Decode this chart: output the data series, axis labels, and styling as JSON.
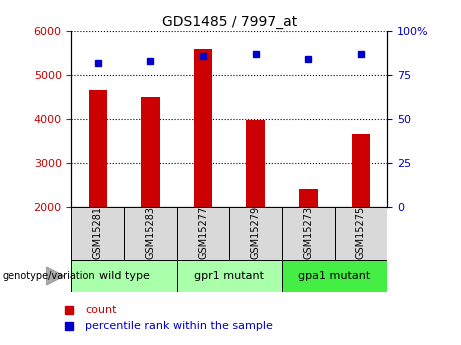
{
  "title": "GDS1485 / 7997_at",
  "samples": [
    "GSM15281",
    "GSM15283",
    "GSM15277",
    "GSM15279",
    "GSM15273",
    "GSM15275"
  ],
  "counts": [
    4650,
    4500,
    5600,
    3980,
    2420,
    3650
  ],
  "percentile_ranks": [
    82,
    83,
    86,
    87,
    84,
    87
  ],
  "ylim_left": [
    2000,
    6000
  ],
  "ylim_right": [
    0,
    100
  ],
  "yticks_left": [
    2000,
    3000,
    4000,
    5000,
    6000
  ],
  "yticks_right": [
    0,
    25,
    50,
    75,
    100
  ],
  "bar_color": "#cc0000",
  "dot_color": "#0000cc",
  "group_bg_color": "#d9d9d9",
  "groups": [
    {
      "label": "wild type",
      "indices": [
        0,
        1
      ],
      "color": "#aaffaa"
    },
    {
      "label": "gpr1 mutant",
      "indices": [
        2,
        3
      ],
      "color": "#aaffaa"
    },
    {
      "label": "gpa1 mutant",
      "indices": [
        4,
        5
      ],
      "color": "#44ee44"
    }
  ],
  "xlabel_color": "#cc0000",
  "ylabel_right_color": "#0000cc",
  "legend_count_color": "#cc0000",
  "legend_pct_color": "#0000cc",
  "bottom_label": "genotype/variation"
}
